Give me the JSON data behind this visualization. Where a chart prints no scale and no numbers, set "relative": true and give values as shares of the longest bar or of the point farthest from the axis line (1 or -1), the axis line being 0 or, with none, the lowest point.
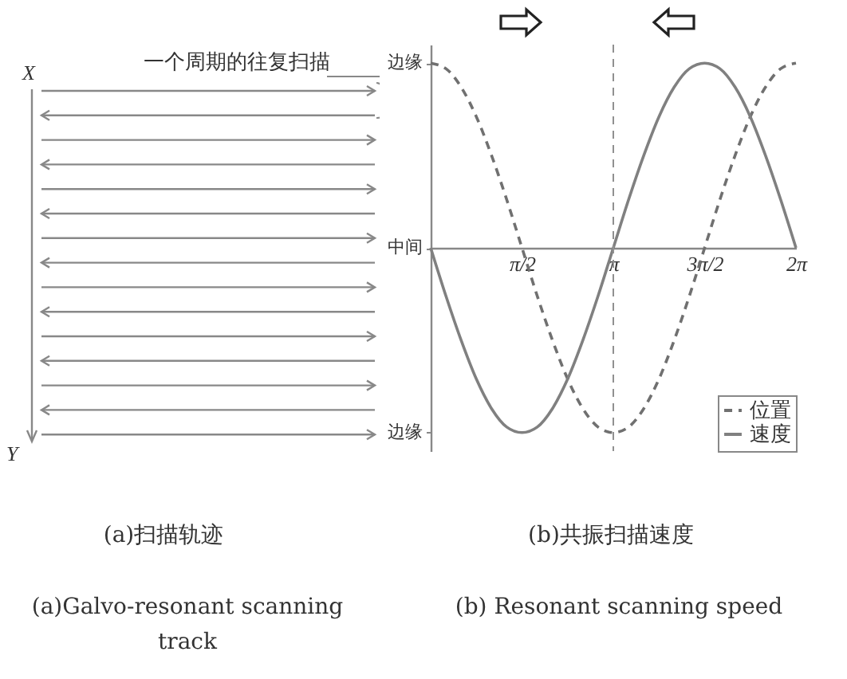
{
  "chart_data": [
    {
      "type": "other",
      "annotations": [
        "X",
        "Y",
        "一个周期的往复扫描",
        "(a)扫描轨迹",
        "(a)Galvo-resonant scanning track"
      ]
    },
    {
      "type": "line",
      "annotations": [
        "(b)共振扫描速度",
        "(b) Resonant scanning speed",
        "边缘",
        "中间",
        "边缘"
      ],
      "relative": true,
      "x": [
        0,
        0.2618,
        0.5236,
        0.7854,
        1.0472,
        1.309,
        1.5708,
        1.8326,
        2.0944,
        2.3562,
        2.618,
        2.8798,
        3.1416,
        3.4034,
        3.6652,
        3.927,
        4.1888,
        4.4506,
        4.7124,
        4.9742,
        5.236,
        5.4978,
        5.7596,
        6.0214,
        6.2832
      ],
      "xlim": [
        0,
        6.2832
      ],
      "xticks": [
        {
          "value": 1.5708,
          "label": "π/2"
        },
        {
          "value": 3.1416,
          "label": "π"
        },
        {
          "value": 4.7124,
          "label": "3π/2"
        },
        {
          "value": 6.2832,
          "label": "2π"
        }
      ],
      "series": [
        {
          "name": "位置",
          "color": "#707070",
          "line_style": "dashed",
          "values": [
            1,
            0.97,
            0.87,
            0.71,
            0.5,
            0.26,
            0,
            -0.26,
            -0.5,
            -0.71,
            -0.87,
            -0.97,
            -1,
            -0.97,
            -0.87,
            -0.71,
            -0.5,
            -0.26,
            0,
            0.26,
            0.5,
            0.71,
            0.87,
            0.97,
            1
          ]
        },
        {
          "name": "速度",
          "color": "#808080",
          "line_style": "solid",
          "values": [
            0,
            -0.26,
            -0.5,
            -0.71,
            -0.87,
            -0.97,
            -1,
            -0.97,
            -0.87,
            -0.71,
            -0.5,
            -0.26,
            0,
            0.26,
            0.5,
            0.71,
            0.87,
            0.97,
            1,
            0.97,
            0.87,
            0.71,
            0.5,
            0.26,
            0
          ]
        }
      ],
      "ref_lines": [
        {
          "axis": "x",
          "value": 3.1416,
          "color": "#909090",
          "line_style": "dashed"
        }
      ],
      "legend": "bottom right"
    }
  ]
}
